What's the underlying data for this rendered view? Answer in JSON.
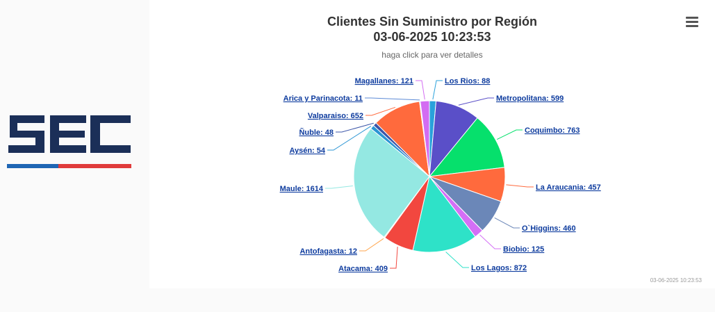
{
  "chart": {
    "title_line1": "Clientes Sin Suministro por Región",
    "title_line2": "03-06-2025 10:23:53",
    "subtitle": "haga click para ver detalles",
    "credits": "03-06-2025 10:23:53",
    "menu_icon": "hamburger-menu-icon"
  },
  "logo": {
    "text": "SEC",
    "colors": {
      "letters": "#1b2f58",
      "bar_left": "#1f66b4",
      "bar_right": "#e03b3b"
    }
  },
  "chart_data": {
    "type": "pie",
    "title": "Clientes Sin Suministro por Región",
    "subtitle": "haga click para ver detalles",
    "label_format": "{name}: {value}",
    "series": [
      {
        "name": "Los Rios",
        "value": 88,
        "color": "#2aa1db"
      },
      {
        "name": "Metropolitana",
        "value": 599,
        "color": "#5a4fc8"
      },
      {
        "name": "Coquimbo",
        "value": 763,
        "color": "#06e06c"
      },
      {
        "name": "La Araucania",
        "value": 457,
        "color": "#ff6a3d"
      },
      {
        "name": "O`Higgins",
        "value": 460,
        "color": "#6b87b8"
      },
      {
        "name": "Biobio",
        "value": 125,
        "color": "#d46ff6"
      },
      {
        "name": "Los Lagos",
        "value": 872,
        "color": "#2ee2c8"
      },
      {
        "name": "Atacama",
        "value": 409,
        "color": "#f2473f"
      },
      {
        "name": "Antofagasta",
        "value": 12,
        "color": "#ffa64d"
      },
      {
        "name": "Maule",
        "value": 1614,
        "color": "#94e8e2"
      },
      {
        "name": "Aysén",
        "value": 54,
        "color": "#2b95d4"
      },
      {
        "name": "Ñuble",
        "value": 48,
        "color": "#3b55a8"
      },
      {
        "name": "Valparaiso",
        "value": 652,
        "color": "#ff6a3d"
      },
      {
        "name": "Arica y Parinacota",
        "value": 11,
        "color": "#5c8ad6"
      },
      {
        "name": "Magallanes",
        "value": 121,
        "color": "#d36cf2"
      }
    ]
  }
}
